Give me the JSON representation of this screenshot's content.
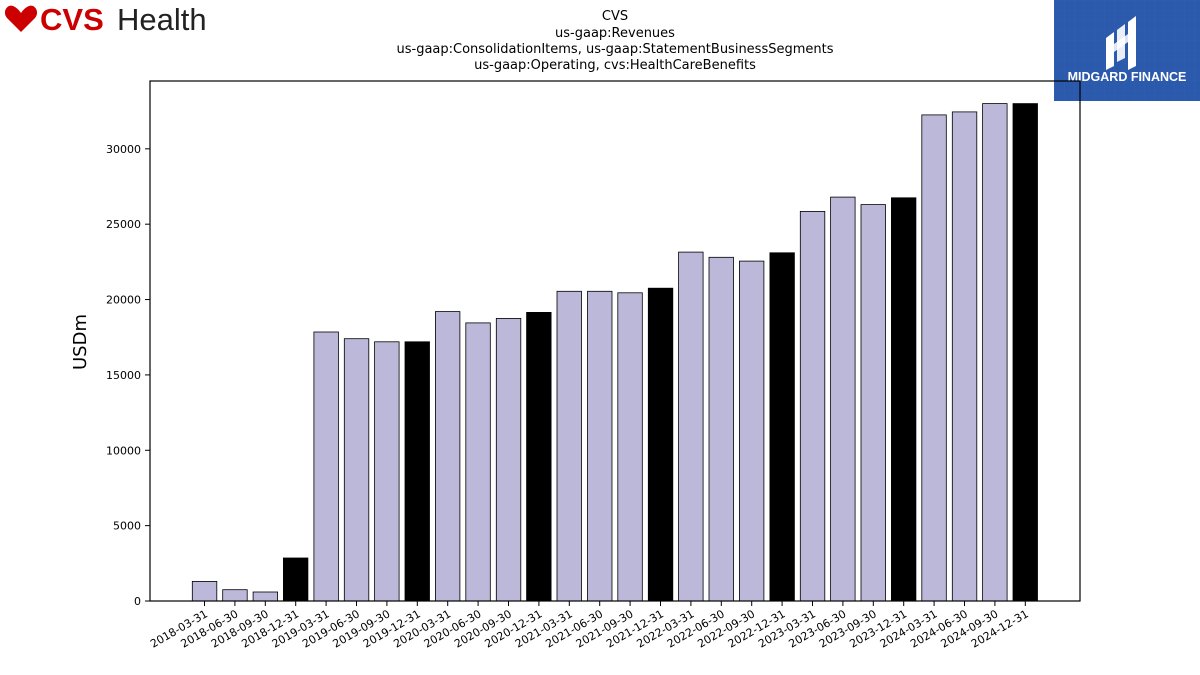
{
  "brand": {
    "left_logo_text_a": "CVS",
    "left_logo_text_b": "Health",
    "left_logo_color": "#cc0000",
    "right_logo_text": "MIDGARD FINANCE",
    "right_logo_color": "#2b5aad"
  },
  "chart_data": {
    "type": "bar",
    "title_lines": [
      "CVS",
      "us-gaap:Revenues",
      "us-gaap:ConsolidationItems, us-gaap:StatementBusinessSegments",
      "us-gaap:Operating, cvs:HealthCareBenefits"
    ],
    "xlabel": "",
    "ylabel": "USDm",
    "ylim": [
      0,
      34500
    ],
    "yticks": [
      0,
      5000,
      10000,
      15000,
      20000,
      25000,
      30000
    ],
    "grid": false,
    "categories": [
      "2018-03-31",
      "2018-06-30",
      "2018-09-30",
      "2018-12-31",
      "2019-03-31",
      "2019-06-30",
      "2019-09-30",
      "2019-12-31",
      "2020-03-31",
      "2020-06-30",
      "2020-09-30",
      "2020-12-31",
      "2021-03-31",
      "2021-06-30",
      "2021-09-30",
      "2021-12-31",
      "2022-03-31",
      "2022-06-30",
      "2022-09-30",
      "2022-12-31",
      "2023-03-31",
      "2023-06-30",
      "2023-09-30",
      "2023-12-31",
      "2024-03-31",
      "2024-06-30",
      "2024-09-30",
      "2024-12-31"
    ],
    "values": [
      1300,
      750,
      600,
      2850,
      17850,
      17400,
      17200,
      17200,
      19200,
      18450,
      18750,
      19150,
      20550,
      20550,
      20450,
      20750,
      23150,
      22800,
      22550,
      23100,
      25850,
      26800,
      26300,
      26750,
      32250,
      32450,
      33000,
      33000
    ],
    "colors": {
      "quarter_bar": "#bcb8d9",
      "year_end_bar": "#000000",
      "edge": "#000000"
    }
  }
}
